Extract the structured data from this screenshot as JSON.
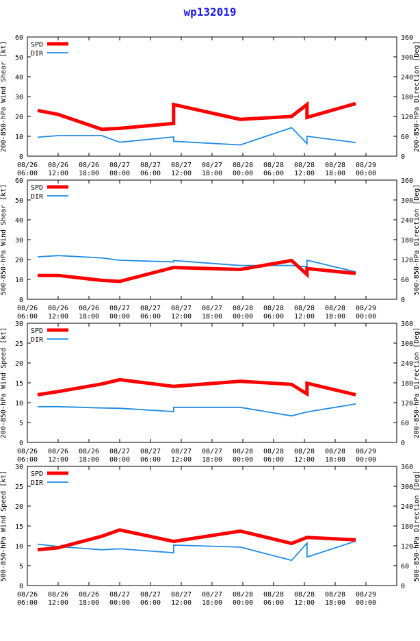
{
  "title": "wp132019",
  "chart_data": [
    {
      "type": "line",
      "ylabel_left": "200-850-hPa Wind Shear [kt]",
      "ylabel_right": "200-850-hPa Direction [Deg]",
      "ylim_left": [
        0,
        60
      ],
      "yticks_left": [
        "0",
        "10",
        "20",
        "30",
        "40",
        "50",
        "60"
      ],
      "ylim_right": [
        0,
        360
      ],
      "yticks_right": [
        "0",
        "60",
        "120",
        "180",
        "240",
        "300",
        "360"
      ],
      "xlim_hours": [
        0,
        72
      ],
      "xticks": [
        {
          "h": 0,
          "d": "08/26",
          "t": "06:00"
        },
        {
          "h": 6,
          "d": "08/26",
          "t": "12:00"
        },
        {
          "h": 12,
          "d": "08/26",
          "t": "18:00"
        },
        {
          "h": 18,
          "d": "08/27",
          "t": "00:00"
        },
        {
          "h": 24,
          "d": "08/27",
          "t": "06:00"
        },
        {
          "h": 30,
          "d": "08/27",
          "t": "12:00"
        },
        {
          "h": 36,
          "d": "08/27",
          "t": "18:00"
        },
        {
          "h": 42,
          "d": "08/28",
          "t": "00:00"
        },
        {
          "h": 48,
          "d": "08/28",
          "t": "06:00"
        },
        {
          "h": 54,
          "d": "08/28",
          "t": "12:00"
        },
        {
          "h": 60,
          "d": "08/28",
          "t": "18:00"
        },
        {
          "h": 66,
          "d": "08/29",
          "t": "00:00"
        }
      ],
      "legend": [
        "SPD",
        "DIR"
      ],
      "series": [
        {
          "name": "SPD",
          "axis": "left",
          "color": "#ff0000",
          "x": [
            2,
            6,
            14.5,
            18,
            28.5,
            28.5,
            41.5,
            51.5,
            54.5,
            54.5,
            64
          ],
          "y": [
            23,
            21,
            13.5,
            14,
            16.5,
            26,
            18.5,
            20,
            26,
            19.5,
            26.5
          ]
        },
        {
          "name": "DIR",
          "axis": "right",
          "color": "#1e8ce6",
          "x": [
            2,
            6,
            14.5,
            18,
            28.5,
            28.5,
            41.5,
            51.5,
            54.5,
            54.5,
            64
          ],
          "y": [
            57,
            62,
            62,
            42,
            58,
            45,
            34,
            86,
            38,
            60,
            41
          ]
        }
      ]
    },
    {
      "type": "line",
      "ylabel_left": "500-850-hPa Wind Shear [kt]",
      "ylabel_right": "500-850-hPa Direction [Deg]",
      "ylim_left": [
        0,
        60
      ],
      "yticks_left": [
        "0",
        "10",
        "20",
        "30",
        "40",
        "50",
        "60"
      ],
      "ylim_right": [
        0,
        360
      ],
      "yticks_right": [
        "0",
        "60",
        "120",
        "180",
        "240",
        "300",
        "360"
      ],
      "xlim_hours": [
        0,
        72
      ],
      "xticks": [
        {
          "h": 0,
          "d": "08/26",
          "t": "06:00"
        },
        {
          "h": 6,
          "d": "08/26",
          "t": "12:00"
        },
        {
          "h": 12,
          "d": "08/26",
          "t": "18:00"
        },
        {
          "h": 18,
          "d": "08/27",
          "t": "00:00"
        },
        {
          "h": 24,
          "d": "08/27",
          "t": "06:00"
        },
        {
          "h": 30,
          "d": "08/27",
          "t": "12:00"
        },
        {
          "h": 36,
          "d": "08/27",
          "t": "18:00"
        },
        {
          "h": 42,
          "d": "08/28",
          "t": "00:00"
        },
        {
          "h": 48,
          "d": "08/28",
          "t": "06:00"
        },
        {
          "h": 54,
          "d": "08/28",
          "t": "12:00"
        },
        {
          "h": 60,
          "d": "08/28",
          "t": "18:00"
        },
        {
          "h": 66,
          "d": "08/29",
          "t": "00:00"
        }
      ],
      "legend": [
        "SPD",
        "DIR"
      ],
      "series": [
        {
          "name": "SPD",
          "axis": "left",
          "color": "#ff0000",
          "x": [
            2,
            6,
            14.5,
            18,
            28.5,
            41.5,
            51.5,
            54.5,
            54.5,
            64
          ],
          "y": [
            12,
            12,
            9.5,
            9,
            16,
            15,
            19.5,
            12.5,
            15.5,
            13
          ]
        },
        {
          "name": "DIR",
          "axis": "right",
          "color": "#1e8ce6",
          "x": [
            2,
            6,
            14.5,
            18,
            28.5,
            28.5,
            41.5,
            51.5,
            54.5,
            54.5,
            64
          ],
          "y": [
            128,
            132,
            125,
            118,
            113,
            117,
            102,
            102,
            98,
            118,
            83
          ]
        }
      ]
    },
    {
      "type": "line",
      "ylabel_left": "200-850-hPa Wind Speed [kt]",
      "ylabel_right": "200-850-hPa Direction [Deg]",
      "ylim_left": [
        0,
        30
      ],
      "yticks_left": [
        "0",
        "5",
        "10",
        "15",
        "20",
        "25",
        "30"
      ],
      "ylim_right": [
        0,
        360
      ],
      "yticks_right": [
        "0",
        "60",
        "120",
        "180",
        "240",
        "300",
        "360"
      ],
      "xlim_hours": [
        0,
        72
      ],
      "xticks": [
        {
          "h": 0,
          "d": "08/26",
          "t": "06:00"
        },
        {
          "h": 6,
          "d": "08/26",
          "t": "12:00"
        },
        {
          "h": 12,
          "d": "08/26",
          "t": "18:00"
        },
        {
          "h": 18,
          "d": "08/27",
          "t": "00:00"
        },
        {
          "h": 24,
          "d": "08/27",
          "t": "06:00"
        },
        {
          "h": 30,
          "d": "08/27",
          "t": "12:00"
        },
        {
          "h": 36,
          "d": "08/27",
          "t": "18:00"
        },
        {
          "h": 42,
          "d": "08/28",
          "t": "00:00"
        },
        {
          "h": 48,
          "d": "08/28",
          "t": "06:00"
        },
        {
          "h": 54,
          "d": "08/28",
          "t": "12:00"
        },
        {
          "h": 60,
          "d": "08/28",
          "t": "18:00"
        },
        {
          "h": 66,
          "d": "08/29",
          "t": "00:00"
        }
      ],
      "legend": [
        "SPD",
        "DIR"
      ],
      "series": [
        {
          "name": "SPD",
          "axis": "left",
          "color": "#ff0000",
          "x": [
            2,
            6,
            14.5,
            18,
            28.5,
            41.5,
            51.5,
            54.5,
            54.5,
            64
          ],
          "y": [
            12,
            12.8,
            14.7,
            15.8,
            14.1,
            15.4,
            14.6,
            12.2,
            14.9,
            12
          ]
        },
        {
          "name": "DIR",
          "axis": "right",
          "color": "#1e8ce6",
          "x": [
            2,
            6,
            14.5,
            18,
            28.5,
            28.5,
            41.5,
            51.5,
            54.5,
            54.5,
            64
          ],
          "y": [
            108,
            108,
            104,
            103,
            93,
            106,
            106,
            80,
            92,
            92,
            116
          ]
        }
      ]
    },
    {
      "type": "line",
      "ylabel_left": "500-850-hPa Wind Speed [kt]",
      "ylabel_right": "500-850-hPa Direction [Deg]",
      "ylim_left": [
        0,
        30
      ],
      "yticks_left": [
        "0",
        "5",
        "10",
        "15",
        "20",
        "25",
        "30"
      ],
      "ylim_right": [
        0,
        360
      ],
      "yticks_right": [
        "0",
        "60",
        "120",
        "180",
        "240",
        "300",
        "360"
      ],
      "xlim_hours": [
        0,
        72
      ],
      "xticks": [
        {
          "h": 0,
          "d": "08/26",
          "t": "06:00"
        },
        {
          "h": 6,
          "d": "08/26",
          "t": "12:00"
        },
        {
          "h": 12,
          "d": "08/26",
          "t": "18:00"
        },
        {
          "h": 18,
          "d": "08/27",
          "t": "00:00"
        },
        {
          "h": 24,
          "d": "08/27",
          "t": "06:00"
        },
        {
          "h": 30,
          "d": "08/27",
          "t": "12:00"
        },
        {
          "h": 36,
          "d": "08/27",
          "t": "18:00"
        },
        {
          "h": 42,
          "d": "08/28",
          "t": "00:00"
        },
        {
          "h": 48,
          "d": "08/28",
          "t": "06:00"
        },
        {
          "h": 54,
          "d": "08/28",
          "t": "12:00"
        },
        {
          "h": 60,
          "d": "08/28",
          "t": "18:00"
        },
        {
          "h": 66,
          "d": "08/29",
          "t": "00:00"
        }
      ],
      "legend": [
        "SPD",
        "DIR"
      ],
      "series": [
        {
          "name": "SPD",
          "axis": "left",
          "color": "#ff0000",
          "x": [
            2,
            6,
            14.5,
            18,
            28.5,
            41.5,
            51.5,
            54.5,
            64
          ],
          "y": [
            9,
            9.5,
            12.4,
            14,
            11.1,
            13.7,
            10.6,
            12.1,
            11.5
          ]
        },
        {
          "name": "DIR",
          "axis": "right",
          "color": "#1e8ce6",
          "x": [
            2,
            6,
            14.5,
            18,
            28.5,
            28.5,
            41.5,
            51.5,
            54.5,
            54.5,
            64
          ],
          "y": [
            125,
            118,
            108,
            111,
            99,
            122,
            116,
            76,
            128,
            86,
            134
          ]
        }
      ]
    }
  ]
}
